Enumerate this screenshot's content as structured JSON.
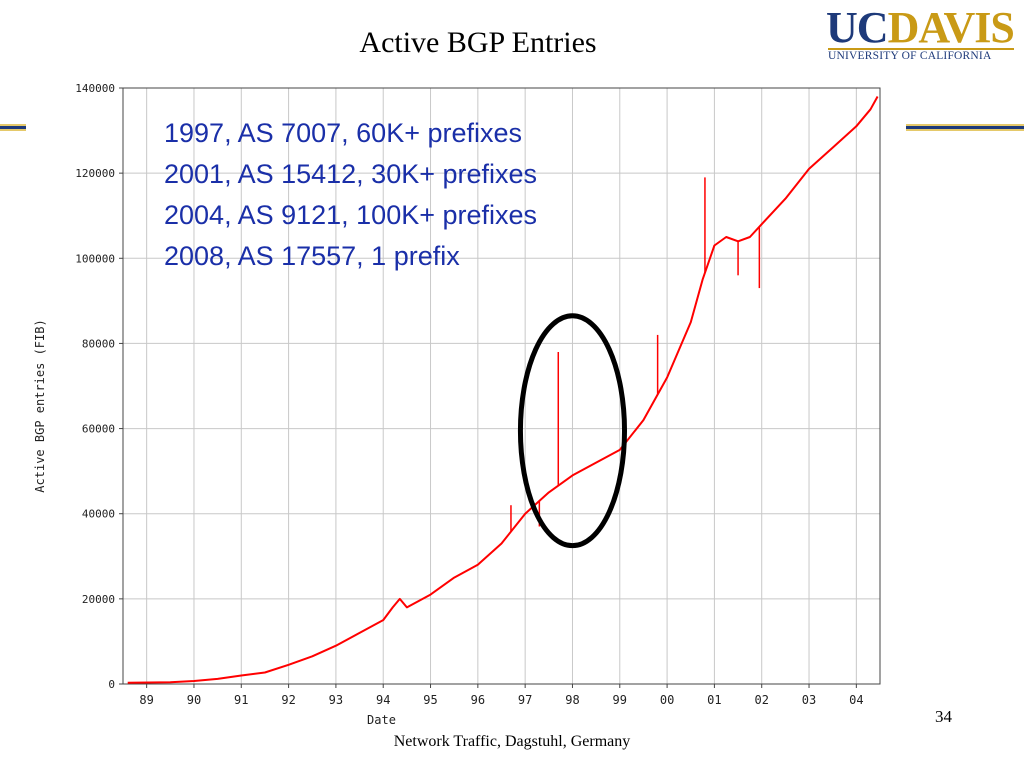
{
  "slide": {
    "title": "Active BGP Entries",
    "footer": "Network Traffic, Dagstuhl, Germany",
    "page_number": "34",
    "logo": {
      "uc": "UC",
      "davis": "DAVIS",
      "subtitle": "UNIVERSITY OF CALIFORNIA"
    }
  },
  "annotations": [
    "1997, AS 7007, 60K+ prefixes",
    "2001, AS 15412, 30K+ prefixes",
    "2004, AS 9121, 100K+ prefixes",
    "2008, AS 17557, 1 prefix"
  ],
  "chart_data": {
    "type": "line",
    "title": "",
    "xlabel": "Date",
    "ylabel": "Active BGP entries (FIB)",
    "xlim": [
      1988.5,
      2004.5
    ],
    "ylim": [
      0,
      140000
    ],
    "x_ticks": [
      "89",
      "90",
      "91",
      "92",
      "93",
      "94",
      "95",
      "96",
      "97",
      "98",
      "99",
      "00",
      "01",
      "02",
      "03",
      "04"
    ],
    "y_ticks": [
      0,
      20000,
      40000,
      60000,
      80000,
      100000,
      120000,
      140000
    ],
    "grid": true,
    "line_color": "#ff0000",
    "series": [
      {
        "x": [
          1988.6,
          1989.5,
          1990.0,
          1990.5,
          1991.0,
          1991.5,
          1992.0,
          1992.5,
          1993.0,
          1993.5,
          1994.0,
          1994.2,
          1994.35,
          1994.5,
          1995.0,
          1995.5,
          1996.0,
          1996.5,
          1997.0,
          1997.5,
          1998.0,
          1998.5,
          1999.0,
          1999.5,
          2000.0,
          2000.5,
          2000.75,
          2001.0,
          2001.25,
          2001.5,
          2001.75,
          2002.0,
          2002.5,
          2003.0,
          2003.5,
          2004.0,
          2004.3,
          2004.45
        ],
        "y": [
          300,
          400,
          700,
          1200,
          2000,
          2700,
          4500,
          6500,
          9000,
          12000,
          15000,
          18000,
          20000,
          18000,
          21000,
          25000,
          28000,
          33000,
          40000,
          45000,
          49000,
          52000,
          55000,
          62000,
          72000,
          85000,
          95000,
          103000,
          105000,
          104000,
          105000,
          108000,
          114000,
          121000,
          126000,
          131000,
          135000,
          138000
        ]
      }
    ],
    "spikes": [
      {
        "x": 1997.7,
        "y": 78000
      },
      {
        "x": 2000.8,
        "y": 119000
      },
      {
        "x": 2001.95,
        "y": 93000
      },
      {
        "x": 1999.8,
        "y": 82000
      },
      {
        "x": 1996.7,
        "y": 42000
      },
      {
        "x": 1997.3,
        "y": 37000
      },
      {
        "x": 2001.5,
        "y": 96000
      }
    ],
    "highlight_ellipse": {
      "center_x": 1998.0,
      "center_y": 59500,
      "radius_x": 1.1,
      "radius_y": 27000,
      "color": "#000000"
    }
  }
}
